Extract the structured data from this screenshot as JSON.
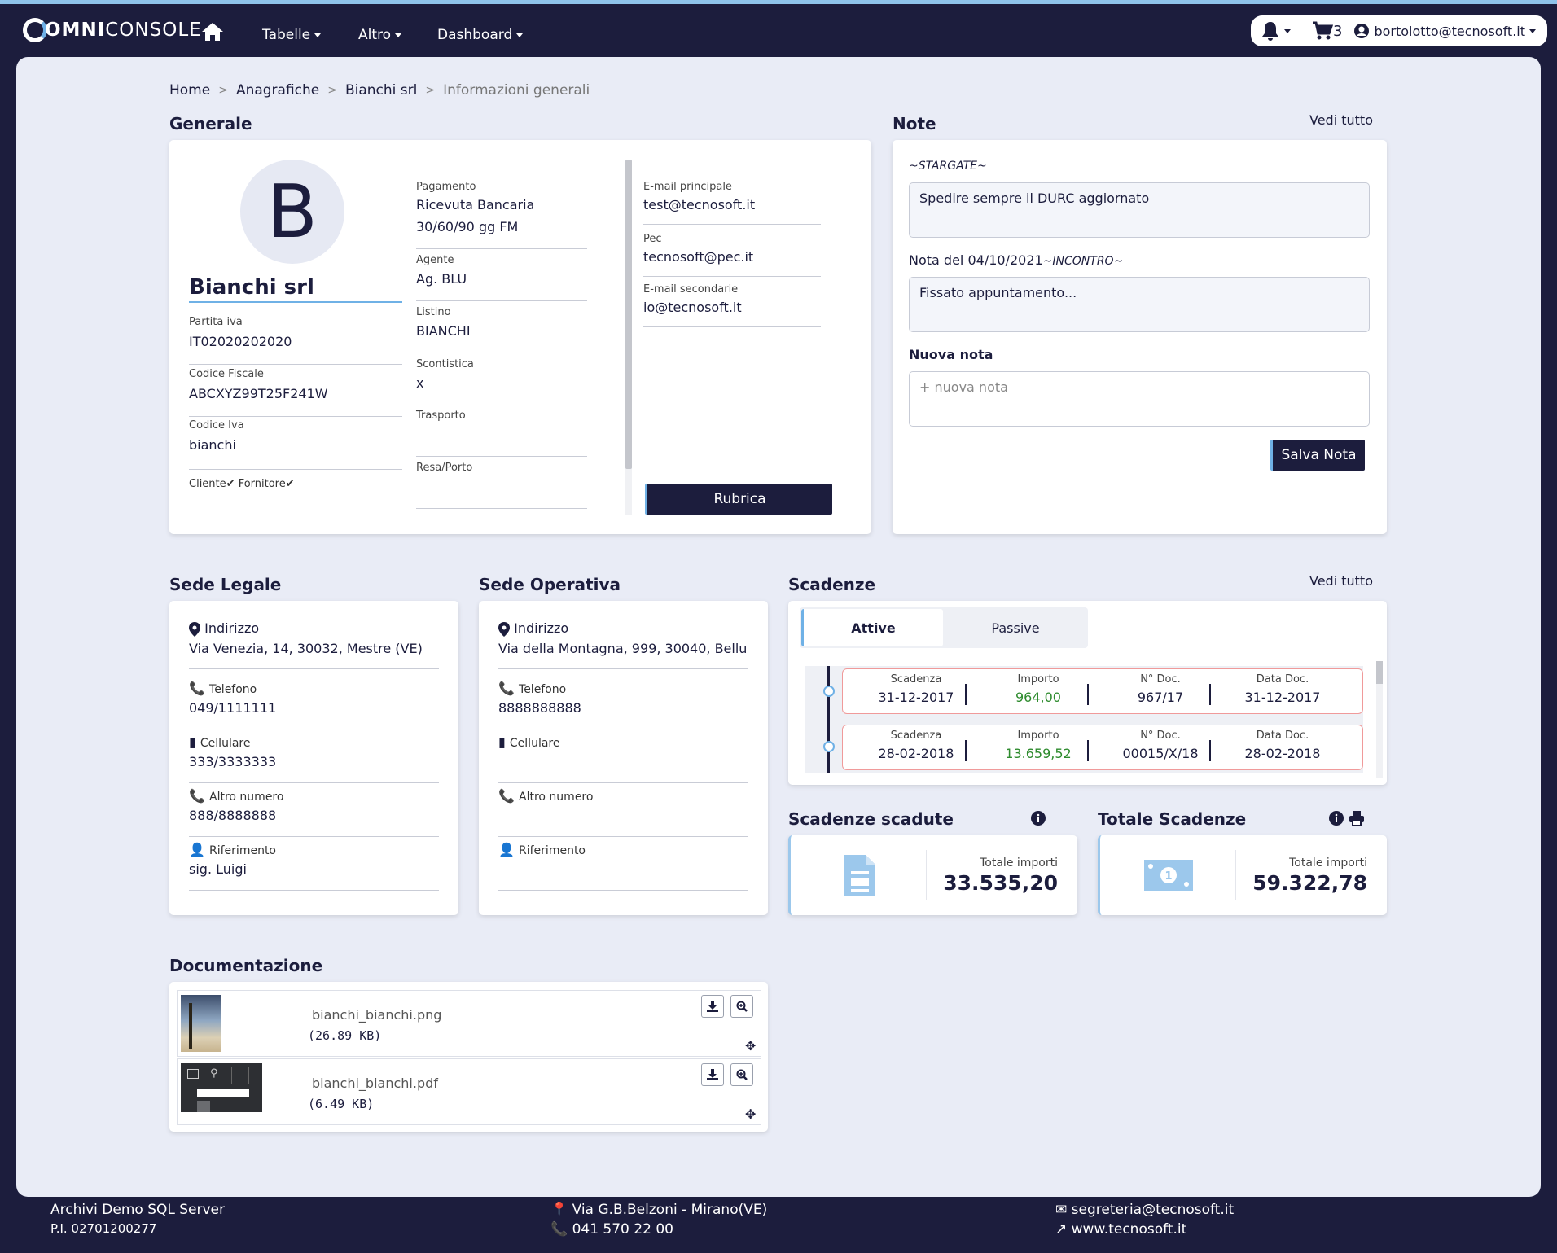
{
  "nav": {
    "logo_bold": "OMNI",
    "logo_light": "CONSOLE",
    "items": [
      "Tabelle",
      "Altro",
      "Dashboard"
    ],
    "cart_count": "3",
    "user": "bortolotto@tecnosoft.it"
  },
  "breadcrumb": [
    "Home",
    "Anagrafiche",
    "Bianchi srl",
    "Informazioni generali"
  ],
  "generale": {
    "title": "Generale",
    "avatar_letter": "B",
    "name": "Bianchi srl",
    "partita_iva_label": "Partita iva",
    "partita_iva": "IT02020202020",
    "codice_fiscale_label": "Codice Fiscale",
    "codice_fiscale": "ABCXYZ99T25F241W",
    "codice_iva_label": "Codice Iva",
    "codice_iva": "bianchi",
    "cliente_label": "Cliente",
    "fornitore_label": "Fornitore",
    "pagamento_label": "Pagamento",
    "pagamento_1": "Ricevuta Bancaria",
    "pagamento_2": "30/60/90 gg FM",
    "agente_label": "Agente",
    "agente": "Ag. BLU",
    "listino_label": "Listino",
    "listino": "BIANCHI",
    "scontistica_label": "Scontistica",
    "scontistica": "x",
    "trasporto_label": "Trasporto",
    "trasporto": "",
    "resa_label": "Resa/Porto",
    "resa": "",
    "email_label": "E-mail principale",
    "email": "test@tecnosoft.it",
    "pec_label": "Pec",
    "pec": "tecnosoft@pec.it",
    "email2_label": "E-mail secondarie",
    "email2": "io@tecnosoft.it",
    "rubrica": "Rubrica"
  },
  "note": {
    "title": "Note",
    "see_all": "Vedi tutto",
    "note1_tag": "~STARGATE~",
    "note1_text": "Spedire sempre il DURC aggiornato",
    "note2_head": "Nota del 04/10/2021",
    "note2_tag": "~INCONTRO~",
    "note2_text": "Fissato appuntamento...",
    "new_label": "Nuova nota",
    "new_placeholder": "+ nuova nota",
    "save": "Salva Nota"
  },
  "sede_legale": {
    "title": "Sede Legale",
    "indirizzo_label": "Indirizzo",
    "indirizzo": "Via Venezia, 14, 30032, Mestre (VE)",
    "telefono_label": "Telefono",
    "telefono": "049/1111111",
    "cellulare_label": "Cellulare",
    "cellulare": "333/3333333",
    "altro_label": "Altro numero",
    "altro": "888/8888888",
    "riferimento_label": "Riferimento",
    "riferimento": "sig. Luigi"
  },
  "sede_operativa": {
    "title": "Sede Operativa",
    "indirizzo_label": "Indirizzo",
    "indirizzo": "Via della Montagna, 999, 30040, Bellu...",
    "telefono_label": "Telefono",
    "telefono": "8888888888",
    "cellulare_label": "Cellulare",
    "cellulare": "",
    "altro_label": "Altro numero",
    "altro": "",
    "riferimento_label": "Riferimento",
    "riferimento": ""
  },
  "scadenze": {
    "title": "Scadenze",
    "see_all": "Vedi tutto",
    "tab_active": "Attive",
    "tab_passive": "Passive",
    "headers": [
      "Scadenza",
      "Importo",
      "N° Doc.",
      "Data Doc."
    ],
    "rows": [
      [
        "31-12-2017",
        "964,00",
        "967/17",
        "31-12-2017"
      ],
      [
        "28-02-2018",
        "13.659,52",
        "00015/X/18",
        "28-02-2018"
      ]
    ],
    "importo_color": "#2e8b2e"
  },
  "scadute": {
    "title": "Scadenze scadute",
    "label": "Totale importi",
    "value": "33.535,20"
  },
  "totale": {
    "title": "Totale Scadenze",
    "label": "Totale importi",
    "value": "59.322,78"
  },
  "documentazione": {
    "title": "Documentazione",
    "files": [
      {
        "name": "bianchi_bianchi.png",
        "size": "(26.89 KB)"
      },
      {
        "name": "bianchi_bianchi.pdf",
        "size": "(6.49 KB)"
      }
    ]
  },
  "footer": {
    "company": "Archivi Demo SQL Server",
    "piva": "P.I. 02701200277",
    "address": "Via G.B.Belzoni - Mirano(VE)",
    "phone": "041 570 22 00",
    "email": "segreteria@tecnosoft.it",
    "web": "www.tecnosoft.it"
  },
  "colors": {
    "navy": "#1c1d3d",
    "accent": "#6fb1e6",
    "bg": "#e9ecf6",
    "danger_border": "#f09a9a"
  }
}
